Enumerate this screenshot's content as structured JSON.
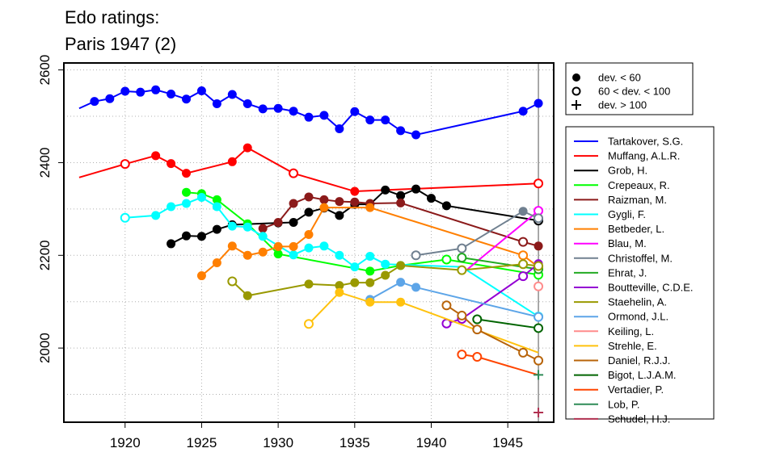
{
  "chart_data": {
    "type": "line",
    "title_lines": [
      "Edo ratings:",
      "Paris 1947 (2)"
    ],
    "xlabel": "",
    "ylabel": "",
    "xlim": [
      1916,
      1948
    ],
    "ylim": [
      1840,
      2615
    ],
    "x_ticks": [
      1920,
      1925,
      1930,
      1935,
      1940,
      1945
    ],
    "y_ticks": [
      2000,
      2200,
      2400,
      2600
    ],
    "y_grid": [
      1900,
      2000,
      2100,
      2200,
      2300,
      2400,
      2500,
      2600
    ],
    "reference_x": 1947,
    "marker_legend": [
      {
        "symbol": "filled",
        "label": "dev. < 60"
      },
      {
        "symbol": "open",
        "label": "60 < dev. < 100"
      },
      {
        "symbol": "plus",
        "label": "dev. > 100"
      }
    ],
    "series": [
      {
        "name": "Tartakover, S.G.",
        "color": "#0000ff",
        "points": [
          [
            1917,
            2517,
            "n"
          ],
          [
            1918,
            2532,
            "f"
          ],
          [
            1919,
            2538,
            "f"
          ],
          [
            1920,
            2554,
            "f"
          ],
          [
            1921,
            2552,
            "f"
          ],
          [
            1922,
            2557,
            "f"
          ],
          [
            1923,
            2548,
            "f"
          ],
          [
            1924,
            2537,
            "f"
          ],
          [
            1925,
            2555,
            "f"
          ],
          [
            1926,
            2527,
            "f"
          ],
          [
            1927,
            2547,
            "f"
          ],
          [
            1928,
            2527,
            "f"
          ],
          [
            1929,
            2516,
            "f"
          ],
          [
            1930,
            2517,
            "f"
          ],
          [
            1931,
            2511,
            "f"
          ],
          [
            1932,
            2498,
            "f"
          ],
          [
            1933,
            2502,
            "f"
          ],
          [
            1934,
            2473,
            "f"
          ],
          [
            1935,
            2510,
            "f"
          ],
          [
            1936,
            2492,
            "f"
          ],
          [
            1937,
            2492,
            "f"
          ],
          [
            1938,
            2469,
            "f"
          ],
          [
            1939,
            2460,
            "f"
          ],
          [
            1946,
            2511,
            "f"
          ],
          [
            1947,
            2528,
            "f"
          ]
        ]
      },
      {
        "name": "Muffang, A.L.R.",
        "color": "#ff0000",
        "points": [
          [
            1917,
            2368,
            "n"
          ],
          [
            1920,
            2397,
            "o"
          ],
          [
            1922,
            2415,
            "f"
          ],
          [
            1923,
            2398,
            "f"
          ],
          [
            1924,
            2377,
            "f"
          ],
          [
            1927,
            2402,
            "f"
          ],
          [
            1928,
            2432,
            "f"
          ],
          [
            1931,
            2377,
            "o"
          ],
          [
            1935,
            2338,
            "f"
          ],
          [
            1947,
            2355,
            "o"
          ]
        ]
      },
      {
        "name": "Grob, H.",
        "color": "#000000",
        "points": [
          [
            1923,
            2225,
            "f"
          ],
          [
            1924,
            2242,
            "f"
          ],
          [
            1925,
            2241,
            "f"
          ],
          [
            1926,
            2256,
            "f"
          ],
          [
            1927,
            2266,
            "f"
          ],
          [
            1930,
            2270,
            "f"
          ],
          [
            1931,
            2271,
            "f"
          ],
          [
            1932,
            2293,
            "f"
          ],
          [
            1933,
            2302,
            "f"
          ],
          [
            1934,
            2286,
            "f"
          ],
          [
            1935,
            2310,
            "f"
          ],
          [
            1936,
            2310,
            "f"
          ],
          [
            1937,
            2341,
            "f"
          ],
          [
            1938,
            2329,
            "f"
          ],
          [
            1939,
            2343,
            "f"
          ],
          [
            1940,
            2323,
            "f"
          ],
          [
            1941,
            2307,
            "f"
          ],
          [
            1947,
            2275,
            "o"
          ]
        ]
      },
      {
        "name": "Crepeaux, R.",
        "color": "#00ff00",
        "points": [
          [
            1924,
            2336,
            "f"
          ],
          [
            1925,
            2333,
            "f"
          ],
          [
            1926,
            2320,
            "f"
          ],
          [
            1928,
            2268,
            "f"
          ],
          [
            1930,
            2203,
            "f"
          ],
          [
            1936,
            2166,
            "f"
          ],
          [
            1938,
            2178,
            "f"
          ],
          [
            1941,
            2191,
            "o"
          ],
          [
            1947,
            2158,
            "o"
          ]
        ]
      },
      {
        "name": "Raizman, M.",
        "color": "#8b1a1a",
        "points": [
          [
            1929,
            2258,
            "f"
          ],
          [
            1930,
            2271,
            "f"
          ],
          [
            1931,
            2312,
            "f"
          ],
          [
            1932,
            2326,
            "f"
          ],
          [
            1933,
            2320,
            "f"
          ],
          [
            1934,
            2316,
            "f"
          ],
          [
            1935,
            2315,
            "f"
          ],
          [
            1936,
            2312,
            "f"
          ],
          [
            1938,
            2313,
            "f"
          ],
          [
            1946,
            2229,
            "o"
          ],
          [
            1947,
            2220,
            "f"
          ]
        ]
      },
      {
        "name": "Gygli, F.",
        "color": "#00ffff",
        "points": [
          [
            1920,
            2281,
            "o"
          ],
          [
            1922,
            2286,
            "f"
          ],
          [
            1923,
            2305,
            "f"
          ],
          [
            1924,
            2312,
            "f"
          ],
          [
            1925,
            2325,
            "f"
          ],
          [
            1926,
            2305,
            "f"
          ],
          [
            1927,
            2263,
            "f"
          ],
          [
            1928,
            2261,
            "f"
          ],
          [
            1929,
            2241,
            "f"
          ],
          [
            1931,
            2201,
            "f"
          ],
          [
            1932,
            2216,
            "f"
          ],
          [
            1933,
            2220,
            "f"
          ],
          [
            1934,
            2200,
            "f"
          ],
          [
            1935,
            2175,
            "f"
          ],
          [
            1936,
            2198,
            "f"
          ],
          [
            1937,
            2181,
            "f"
          ],
          [
            1942,
            2175,
            "n"
          ],
          [
            1947,
            2068,
            "o"
          ]
        ]
      },
      {
        "name": "Betbeder, L.",
        "color": "#ff7f00",
        "points": [
          [
            1925,
            2156,
            "f"
          ],
          [
            1926,
            2184,
            "f"
          ],
          [
            1927,
            2220,
            "f"
          ],
          [
            1928,
            2200,
            "f"
          ],
          [
            1929,
            2207,
            "f"
          ],
          [
            1930,
            2219,
            "f"
          ],
          [
            1931,
            2219,
            "f"
          ],
          [
            1932,
            2245,
            "f"
          ],
          [
            1933,
            2303,
            "f"
          ],
          [
            1936,
            2303,
            "f"
          ],
          [
            1946,
            2200,
            "o"
          ],
          [
            1947,
            2175,
            "o"
          ]
        ]
      },
      {
        "name": "Blau, M.",
        "color": "#ff00ff",
        "points": [
          [
            1942,
            2160,
            "n"
          ],
          [
            1947,
            2296,
            "o"
          ]
        ]
      },
      {
        "name": "Christoffel, M.",
        "color": "#708090",
        "points": [
          [
            1939,
            2200,
            "o"
          ],
          [
            1942,
            2215,
            "o"
          ],
          [
            1946,
            2295,
            "f"
          ],
          [
            1947,
            2280,
            "o"
          ]
        ]
      },
      {
        "name": "Ehrat, J.",
        "color": "#22aa22",
        "points": [
          [
            1942,
            2195,
            "o"
          ],
          [
            1947,
            2170,
            "o"
          ]
        ]
      },
      {
        "name": "Boutteville, C.D.E.",
        "color": "#9400d3",
        "points": [
          [
            1941,
            2053,
            "o"
          ],
          [
            1942,
            2063,
            "o"
          ],
          [
            1946,
            2155,
            "o"
          ],
          [
            1947,
            2182,
            "f"
          ]
        ]
      },
      {
        "name": "Staehelin, A.",
        "color": "#999900",
        "points": [
          [
            1927,
            2144,
            "o"
          ],
          [
            1928,
            2113,
            "f"
          ],
          [
            1932,
            2138,
            "f"
          ],
          [
            1934,
            2135,
            "f"
          ],
          [
            1935,
            2141,
            "f"
          ],
          [
            1936,
            2141,
            "f"
          ],
          [
            1937,
            2157,
            "f"
          ],
          [
            1938,
            2178,
            "f"
          ],
          [
            1942,
            2168,
            "o"
          ],
          [
            1946,
            2181,
            "o"
          ],
          [
            1947,
            2177,
            "o"
          ]
        ]
      },
      {
        "name": "Ormond, J.L.",
        "color": "#5da5e8",
        "points": [
          [
            1936,
            2105,
            "f"
          ],
          [
            1938,
            2142,
            "f"
          ],
          [
            1939,
            2131,
            "f"
          ],
          [
            1947,
            2067,
            "o"
          ]
        ]
      },
      {
        "name": "Keiling, L.",
        "color": "#ff8c8c",
        "points": [
          [
            1947,
            2133,
            "o"
          ]
        ]
      },
      {
        "name": "Strehle, E.",
        "color": "#ffc20e",
        "points": [
          [
            1932,
            2052,
            "o"
          ],
          [
            1934,
            2120,
            "f"
          ],
          [
            1936,
            2099,
            "f"
          ],
          [
            1938,
            2099,
            "f"
          ],
          [
            1947,
            1990,
            "n"
          ]
        ]
      },
      {
        "name": "Daniel, R.J.J.",
        "color": "#b8640a",
        "points": [
          [
            1941,
            2092,
            "o"
          ],
          [
            1942,
            2070,
            "o"
          ],
          [
            1943,
            2040,
            "o"
          ],
          [
            1946,
            1990,
            "o"
          ],
          [
            1947,
            1973,
            "o"
          ]
        ]
      },
      {
        "name": "Bigot, L.J.A.M.",
        "color": "#006400",
        "points": [
          [
            1943,
            2062,
            "o"
          ],
          [
            1947,
            2043,
            "o"
          ]
        ]
      },
      {
        "name": "Vertadier, P.",
        "color": "#ff4500",
        "points": [
          [
            1942,
            1986,
            "o"
          ],
          [
            1943,
            1981,
            "o"
          ],
          [
            1947,
            1942,
            "n"
          ]
        ]
      },
      {
        "name": "Lob, P.",
        "color": "#2e8b57",
        "points": [
          [
            1947,
            1942,
            "p"
          ]
        ]
      },
      {
        "name": "Schudel, H.J.",
        "color": "#b03050",
        "points": [
          [
            1947,
            1861,
            "p"
          ]
        ]
      }
    ]
  }
}
